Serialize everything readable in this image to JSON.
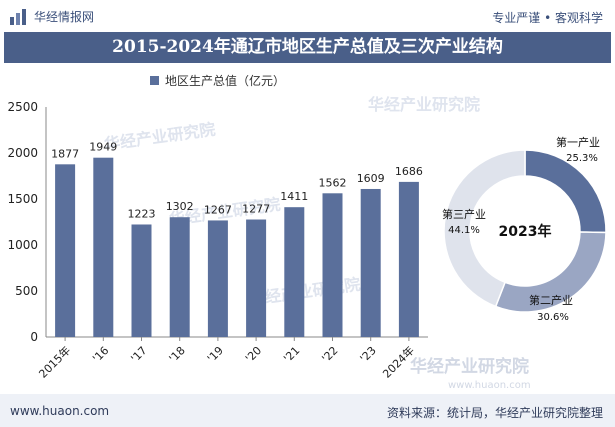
{
  "header": {
    "brand": "华经情报网",
    "tagline": "专业严谨 • 客观科学"
  },
  "title": "2015-2024年通辽市地区生产总值及三次产业结构",
  "legend": {
    "label": "地区生产总值（亿元）"
  },
  "watermarks": {
    "main": "华经产业研究院",
    "url": "www.huaon.com"
  },
  "footer": {
    "site": "www.huaon.com",
    "source": "资料来源：统计局，华经产业研究院整理"
  },
  "colors": {
    "bar": "#5a6f9b",
    "title_bg": "#4a5f89",
    "donut_1": "#5a6f9b",
    "donut_2": "#9aa6c3",
    "donut_3": "#dfe3ec"
  },
  "chart_data": [
    {
      "type": "bar",
      "categories": [
        "2015年",
        "'16",
        "'17",
        "'18",
        "'19",
        "'20",
        "'21",
        "'22",
        "'23",
        "2024年"
      ],
      "series": [
        {
          "name": "地区生产总值（亿元）",
          "values": [
            1877,
            1949,
            1223,
            1302,
            1267,
            1277,
            1411,
            1562,
            1609,
            1686
          ]
        }
      ],
      "yticks": [
        0,
        500,
        1000,
        1500,
        2000,
        2500
      ],
      "ylim": [
        0,
        2500
      ],
      "grid": false,
      "legend": "top"
    },
    {
      "type": "pie",
      "center_label": "2023年",
      "slices": [
        {
          "name": "第一产业",
          "value": 25.3,
          "label": "25.3%"
        },
        {
          "name": "第二产业",
          "value": 30.6,
          "label": "30.6%"
        },
        {
          "name": "第三产业",
          "value": 44.1,
          "label": "44.1%"
        }
      ]
    }
  ]
}
